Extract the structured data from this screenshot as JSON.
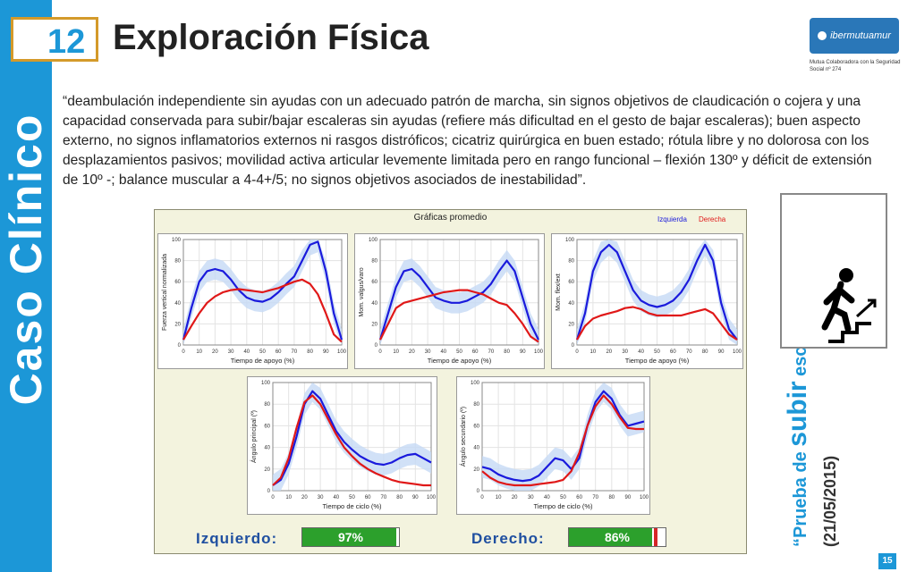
{
  "sidebar": {
    "label": "Caso Clínico"
  },
  "header": {
    "number": "12",
    "title": "Exploración Física"
  },
  "logo": {
    "name": "ibermutuamur",
    "subtitle": "Mutua Colaboradora con la Seguridad Social nº 274"
  },
  "quote": "“deambulación independiente sin ayudas con un adecuado patrón de marcha, sin signos objetivos de claudicación o cojera y una capacidad conservada para subir/bajar escaleras sin ayudas (refiere más dificultad en el gesto de bajar escaleras); buen aspecto externo, no signos inflamatorios externos ni rasgos distróficos; cicatriz quirúrgica en buen estado; rótula libre y no dolorosa con los desplazamientos pasivos; movilidad activa articular levemente limitada pero en rango funcional – flexión 130º y déficit de extensión de 10º -; balance muscular a 4-4+/5; no signos objetivos asociados de inestabilidad”.",
  "panel": {
    "title": "Gráficas promedio",
    "legend_left": "Izquierda",
    "legend_right": "Derecha"
  },
  "colors": {
    "left": "#1a1adc",
    "right": "#e01818",
    "band": "#c6daf5",
    "accent": "#1c97d7"
  },
  "chart_data": [
    {
      "type": "line",
      "ylabel": "Fuerza vertical normalizada",
      "xlabel": "Tiempo de apoyo (%)",
      "xlim": [
        0,
        100
      ],
      "ylim": [
        0,
        100
      ],
      "xticks": [
        "0",
        "10",
        "20",
        "30",
        "40",
        "50",
        "60",
        "70",
        "80",
        "90",
        "100"
      ],
      "yticks": [
        "0",
        "20",
        "40",
        "60",
        "80",
        "100"
      ],
      "series": [
        {
          "name": "Izquierda",
          "x": [
            0,
            5,
            10,
            15,
            20,
            25,
            30,
            35,
            40,
            45,
            50,
            55,
            60,
            65,
            70,
            75,
            80,
            85,
            90,
            95,
            100
          ],
          "values": [
            5,
            35,
            60,
            70,
            72,
            70,
            62,
            52,
            45,
            42,
            41,
            44,
            50,
            58,
            65,
            80,
            95,
            98,
            70,
            30,
            5
          ]
        },
        {
          "name": "Derecha",
          "x": [
            0,
            5,
            10,
            15,
            20,
            25,
            30,
            35,
            40,
            45,
            50,
            55,
            60,
            65,
            70,
            75,
            80,
            85,
            90,
            95,
            100
          ],
          "values": [
            5,
            18,
            30,
            40,
            46,
            50,
            52,
            53,
            52,
            51,
            50,
            52,
            54,
            57,
            60,
            62,
            58,
            48,
            30,
            10,
            3
          ]
        }
      ]
    },
    {
      "type": "line",
      "ylabel": "Mom. valgus/varo",
      "xlabel": "Tiempo de apoyo (%)",
      "xlim": [
        0,
        100
      ],
      "ylim": [
        0,
        100
      ],
      "xticks": [
        "0",
        "10",
        "20",
        "30",
        "40",
        "50",
        "60",
        "70",
        "80",
        "90",
        "100"
      ],
      "yticks": [
        "0",
        "20",
        "40",
        "60",
        "80",
        "100"
      ],
      "series": [
        {
          "name": "Izquierda",
          "x": [
            0,
            5,
            10,
            15,
            20,
            25,
            30,
            35,
            40,
            45,
            50,
            55,
            60,
            65,
            70,
            75,
            80,
            85,
            90,
            95,
            100
          ],
          "values": [
            5,
            30,
            55,
            70,
            72,
            65,
            55,
            45,
            42,
            40,
            40,
            42,
            46,
            50,
            58,
            70,
            80,
            70,
            45,
            20,
            5
          ]
        },
        {
          "name": "Derecha",
          "x": [
            0,
            5,
            10,
            15,
            20,
            25,
            30,
            35,
            40,
            45,
            50,
            55,
            60,
            65,
            70,
            75,
            80,
            85,
            90,
            95,
            100
          ],
          "values": [
            5,
            20,
            35,
            40,
            42,
            44,
            46,
            48,
            50,
            51,
            52,
            52,
            50,
            48,
            44,
            40,
            38,
            30,
            20,
            8,
            3
          ]
        }
      ]
    },
    {
      "type": "line",
      "ylabel": "Mom. flex/ext",
      "xlabel": "Tiempo de apoyo (%)",
      "xlim": [
        0,
        100
      ],
      "ylim": [
        0,
        100
      ],
      "xticks": [
        "0",
        "10",
        "20",
        "30",
        "40",
        "50",
        "60",
        "70",
        "80",
        "90",
        "100"
      ],
      "yticks": [
        "0",
        "20",
        "40",
        "60",
        "80",
        "100"
      ],
      "series": [
        {
          "name": "Izquierda",
          "x": [
            0,
            5,
            10,
            15,
            20,
            25,
            30,
            35,
            40,
            45,
            50,
            55,
            60,
            65,
            70,
            75,
            80,
            85,
            90,
            95,
            100
          ],
          "values": [
            5,
            30,
            70,
            88,
            95,
            88,
            70,
            52,
            42,
            38,
            36,
            38,
            42,
            50,
            62,
            80,
            95,
            80,
            40,
            15,
            5
          ]
        },
        {
          "name": "Derecha",
          "x": [
            0,
            5,
            10,
            15,
            20,
            25,
            30,
            35,
            40,
            45,
            50,
            55,
            60,
            65,
            70,
            75,
            80,
            85,
            90,
            95,
            100
          ],
          "values": [
            5,
            18,
            25,
            28,
            30,
            32,
            35,
            36,
            34,
            30,
            28,
            28,
            28,
            28,
            30,
            32,
            34,
            30,
            20,
            10,
            5
          ]
        }
      ]
    },
    {
      "type": "line",
      "ylabel": "Ángulo principal (º)",
      "xlabel": "Tiempo de ciclo (%)",
      "xlim": [
        0,
        100
      ],
      "ylim": [
        0,
        100
      ],
      "xticks": [
        "0",
        "10",
        "20",
        "30",
        "40",
        "50",
        "60",
        "70",
        "80",
        "90",
        "100"
      ],
      "yticks": [
        "0",
        "20",
        "40",
        "60",
        "80",
        "100"
      ],
      "series": [
        {
          "name": "Izquierda",
          "x": [
            0,
            5,
            10,
            15,
            20,
            25,
            30,
            35,
            40,
            45,
            50,
            55,
            60,
            65,
            70,
            75,
            80,
            85,
            90,
            95,
            100
          ],
          "values": [
            5,
            10,
            25,
            50,
            80,
            92,
            85,
            70,
            55,
            45,
            38,
            32,
            28,
            25,
            24,
            26,
            30,
            33,
            34,
            30,
            26
          ]
        },
        {
          "name": "Derecha",
          "x": [
            0,
            5,
            10,
            15,
            20,
            25,
            30,
            35,
            40,
            45,
            50,
            55,
            60,
            65,
            70,
            75,
            80,
            85,
            90,
            95,
            100
          ],
          "values": [
            5,
            12,
            30,
            58,
            82,
            88,
            80,
            66,
            52,
            40,
            32,
            25,
            20,
            16,
            13,
            10,
            8,
            7,
            6,
            5,
            5
          ]
        }
      ]
    },
    {
      "type": "line",
      "ylabel": "Ángulo secundario (º)",
      "xlabel": "Tiempo de ciclo (%)",
      "xlim": [
        0,
        100
      ],
      "ylim": [
        0,
        100
      ],
      "xticks": [
        "0",
        "10",
        "20",
        "30",
        "40",
        "50",
        "60",
        "70",
        "80",
        "90",
        "100"
      ],
      "yticks": [
        "0",
        "20",
        "40",
        "60",
        "80",
        "100"
      ],
      "series": [
        {
          "name": "Izquierda",
          "x": [
            0,
            5,
            10,
            15,
            20,
            25,
            30,
            35,
            40,
            45,
            50,
            55,
            60,
            65,
            70,
            75,
            80,
            85,
            90,
            95,
            100
          ],
          "values": [
            22,
            20,
            15,
            12,
            10,
            9,
            10,
            14,
            22,
            30,
            28,
            20,
            30,
            60,
            82,
            92,
            85,
            70,
            60,
            62,
            64
          ]
        },
        {
          "name": "Derecha",
          "x": [
            0,
            5,
            10,
            15,
            20,
            25,
            30,
            35,
            40,
            45,
            50,
            55,
            60,
            65,
            70,
            75,
            80,
            85,
            90,
            95,
            100
          ],
          "values": [
            18,
            12,
            8,
            6,
            5,
            5,
            5,
            6,
            7,
            8,
            10,
            18,
            35,
            60,
            78,
            88,
            80,
            68,
            58,
            57,
            57
          ]
        }
      ]
    }
  ],
  "scores": {
    "left_label": "Izquierdo:",
    "left_value": "97%",
    "left_fraction": 0.97,
    "right_label": "Derecho:",
    "right_value": "86%",
    "right_fraction": 0.86
  },
  "side_test": {
    "prefix": "“Prueba de ",
    "word": "subir",
    "suffix": " escaleras”",
    "date": "(21/05/2015)"
  },
  "icon": "person-climbing-stairs-icon",
  "page_number": "15"
}
